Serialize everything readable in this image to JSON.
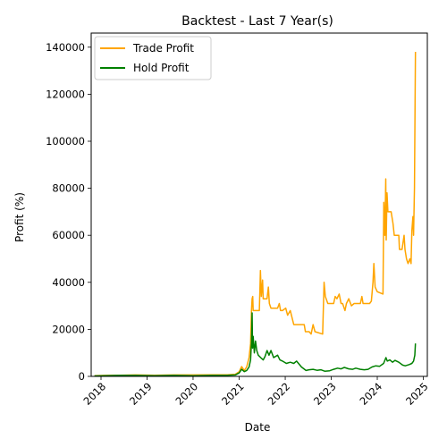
{
  "chart_data": {
    "type": "line",
    "title": "Backtest - Last 7 Year(s)",
    "xlabel": "Date",
    "ylabel": "Profit (%)",
    "xlim": [
      "2017-10-15",
      "2025-02-01"
    ],
    "ylim": [
      0,
      146000
    ],
    "x_ticks": [
      "2018",
      "2019",
      "2020",
      "2021",
      "2022",
      "2023",
      "2024",
      "2025"
    ],
    "y_ticks": [
      "0",
      "20000",
      "40000",
      "60000",
      "80000",
      "100000",
      "120000",
      "140000"
    ],
    "legend_position": "top-left",
    "grid": false,
    "series": [
      {
        "name": "Trade Profit",
        "color": "#ffa500",
        "points": [
          [
            "2017-11-10",
            300
          ],
          [
            "2018-02-01",
            400
          ],
          [
            "2018-06-01",
            500
          ],
          [
            "2018-10-01",
            600
          ],
          [
            "2019-03-01",
            500
          ],
          [
            "2019-08-01",
            600
          ],
          [
            "2020-01-01",
            600
          ],
          [
            "2020-06-01",
            700
          ],
          [
            "2020-10-01",
            700
          ],
          [
            "2020-12-01",
            900
          ],
          [
            "2021-01-01",
            2000
          ],
          [
            "2021-01-20",
            4200
          ],
          [
            "2021-02-10",
            2500
          ],
          [
            "2021-03-01",
            4000
          ],
          [
            "2021-03-20",
            8000
          ],
          [
            "2021-04-01",
            14000
          ],
          [
            "2021-04-08",
            28000
          ],
          [
            "2021-04-13",
            33000
          ],
          [
            "2021-04-18",
            34000
          ],
          [
            "2021-04-22",
            28000
          ],
          [
            "2021-05-15",
            28000
          ],
          [
            "2021-06-10",
            28000
          ],
          [
            "2021-06-18",
            45000
          ],
          [
            "2021-06-25",
            34000
          ],
          [
            "2021-07-05",
            41000
          ],
          [
            "2021-07-10",
            33000
          ],
          [
            "2021-07-20",
            33000
          ],
          [
            "2021-08-10",
            33000
          ],
          [
            "2021-08-20",
            38000
          ],
          [
            "2021-08-28",
            31000
          ],
          [
            "2021-09-10",
            29000
          ],
          [
            "2021-11-01",
            29000
          ],
          [
            "2021-11-15",
            31000
          ],
          [
            "2021-11-25",
            28000
          ],
          [
            "2021-12-10",
            28000
          ],
          [
            "2022-01-05",
            29000
          ],
          [
            "2022-01-20",
            26000
          ],
          [
            "2022-02-10",
            28000
          ],
          [
            "2022-03-10",
            22000
          ],
          [
            "2022-05-01",
            22000
          ],
          [
            "2022-06-01",
            22000
          ],
          [
            "2022-06-10",
            19000
          ],
          [
            "2022-07-10",
            19000
          ],
          [
            "2022-07-25",
            18000
          ],
          [
            "2022-08-10",
            22000
          ],
          [
            "2022-08-25",
            19000
          ],
          [
            "2022-10-25",
            18000
          ],
          [
            "2022-11-05",
            40000
          ],
          [
            "2022-11-15",
            34000
          ],
          [
            "2022-12-05",
            31000
          ],
          [
            "2023-01-20",
            31000
          ],
          [
            "2023-02-01",
            34000
          ],
          [
            "2023-02-15",
            33000
          ],
          [
            "2023-03-05",
            35000
          ],
          [
            "2023-03-20",
            31000
          ],
          [
            "2023-04-01",
            31000
          ],
          [
            "2023-04-20",
            28000
          ],
          [
            "2023-05-01",
            31000
          ],
          [
            "2023-05-20",
            33000
          ],
          [
            "2023-06-10",
            30000
          ],
          [
            "2023-07-01",
            31000
          ],
          [
            "2023-08-20",
            31000
          ],
          [
            "2023-09-01",
            34000
          ],
          [
            "2023-09-10",
            31000
          ],
          [
            "2023-11-01",
            31000
          ],
          [
            "2023-11-15",
            32000
          ],
          [
            "2023-11-28",
            40000
          ],
          [
            "2023-12-05",
            48000
          ],
          [
            "2023-12-15",
            38000
          ],
          [
            "2024-01-01",
            36000
          ],
          [
            "2024-02-15",
            35000
          ],
          [
            "2024-02-22",
            74000
          ],
          [
            "2024-03-01",
            60000
          ],
          [
            "2024-03-08",
            84000
          ],
          [
            "2024-03-12",
            58000
          ],
          [
            "2024-03-18",
            78000
          ],
          [
            "2024-03-25",
            70000
          ],
          [
            "2024-04-20",
            70000
          ],
          [
            "2024-05-05",
            65000
          ],
          [
            "2024-05-15",
            60000
          ],
          [
            "2024-06-20",
            60000
          ],
          [
            "2024-06-25",
            54000
          ],
          [
            "2024-07-15",
            54000
          ],
          [
            "2024-08-01",
            60000
          ],
          [
            "2024-08-08",
            54000
          ],
          [
            "2024-08-20",
            50000
          ],
          [
            "2024-09-01",
            48000
          ],
          [
            "2024-09-15",
            50000
          ],
          [
            "2024-09-25",
            48000
          ],
          [
            "2024-10-01",
            62000
          ],
          [
            "2024-10-10",
            68000
          ],
          [
            "2024-10-15",
            60000
          ],
          [
            "2024-10-22",
            80000
          ],
          [
            "2024-10-30",
            138000
          ]
        ]
      },
      {
        "name": "Hold Profit",
        "color": "#008000",
        "points": [
          [
            "2017-11-10",
            200
          ],
          [
            "2018-02-01",
            300
          ],
          [
            "2018-06-01",
            400
          ],
          [
            "2018-10-01",
            400
          ],
          [
            "2019-03-01",
            300
          ],
          [
            "2019-08-01",
            400
          ],
          [
            "2020-01-01",
            300
          ],
          [
            "2020-06-01",
            400
          ],
          [
            "2020-10-01",
            500
          ],
          [
            "2020-12-01",
            600
          ],
          [
            "2021-01-01",
            1500
          ],
          [
            "2021-01-20",
            3000
          ],
          [
            "2021-02-10",
            2000
          ],
          [
            "2021-03-01",
            2500
          ],
          [
            "2021-03-20",
            4000
          ],
          [
            "2021-04-01",
            7000
          ],
          [
            "2021-04-08",
            15000
          ],
          [
            "2021-04-13",
            27000
          ],
          [
            "2021-04-17",
            12000
          ],
          [
            "2021-04-22",
            17000
          ],
          [
            "2021-05-01",
            10000
          ],
          [
            "2021-05-10",
            15000
          ],
          [
            "2021-05-20",
            11000
          ],
          [
            "2021-06-01",
            9000
          ],
          [
            "2021-06-20",
            8000
          ],
          [
            "2021-07-10",
            7000
          ],
          [
            "2021-07-25",
            8500
          ],
          [
            "2021-08-10",
            11000
          ],
          [
            "2021-08-25",
            9000
          ],
          [
            "2021-09-10",
            11000
          ],
          [
            "2021-10-01",
            8000
          ],
          [
            "2021-11-01",
            9000
          ],
          [
            "2021-11-20",
            7000
          ],
          [
            "2021-12-10",
            6500
          ],
          [
            "2022-01-10",
            5500
          ],
          [
            "2022-02-10",
            6000
          ],
          [
            "2022-03-10",
            5500
          ],
          [
            "2022-04-01",
            6500
          ],
          [
            "2022-05-10",
            4000
          ],
          [
            "2022-06-15",
            2500
          ],
          [
            "2022-07-10",
            2800
          ],
          [
            "2022-08-10",
            3000
          ],
          [
            "2022-09-10",
            2600
          ],
          [
            "2022-10-10",
            2800
          ],
          [
            "2022-11-10",
            2200
          ],
          [
            "2022-12-20",
            2400
          ],
          [
            "2023-01-20",
            3000
          ],
          [
            "2023-02-20",
            3500
          ],
          [
            "2023-03-20",
            3200
          ],
          [
            "2023-04-15",
            3800
          ],
          [
            "2023-05-20",
            3200
          ],
          [
            "2023-06-20",
            3000
          ],
          [
            "2023-07-15",
            3500
          ],
          [
            "2023-08-20",
            3000
          ],
          [
            "2023-09-20",
            2800
          ],
          [
            "2023-10-20",
            3000
          ],
          [
            "2023-11-20",
            4000
          ],
          [
            "2023-12-20",
            4500
          ],
          [
            "2024-01-20",
            4300
          ],
          [
            "2024-02-20",
            5500
          ],
          [
            "2024-03-10",
            8000
          ],
          [
            "2024-03-20",
            6500
          ],
          [
            "2024-04-10",
            7000
          ],
          [
            "2024-05-01",
            6000
          ],
          [
            "2024-05-20",
            6800
          ],
          [
            "2024-06-20",
            6000
          ],
          [
            "2024-07-20",
            4800
          ],
          [
            "2024-08-10",
            4500
          ],
          [
            "2024-09-10",
            5000
          ],
          [
            "2024-10-01",
            5500
          ],
          [
            "2024-10-15",
            6500
          ],
          [
            "2024-10-25",
            9000
          ],
          [
            "2024-10-30",
            14000
          ]
        ]
      }
    ]
  }
}
